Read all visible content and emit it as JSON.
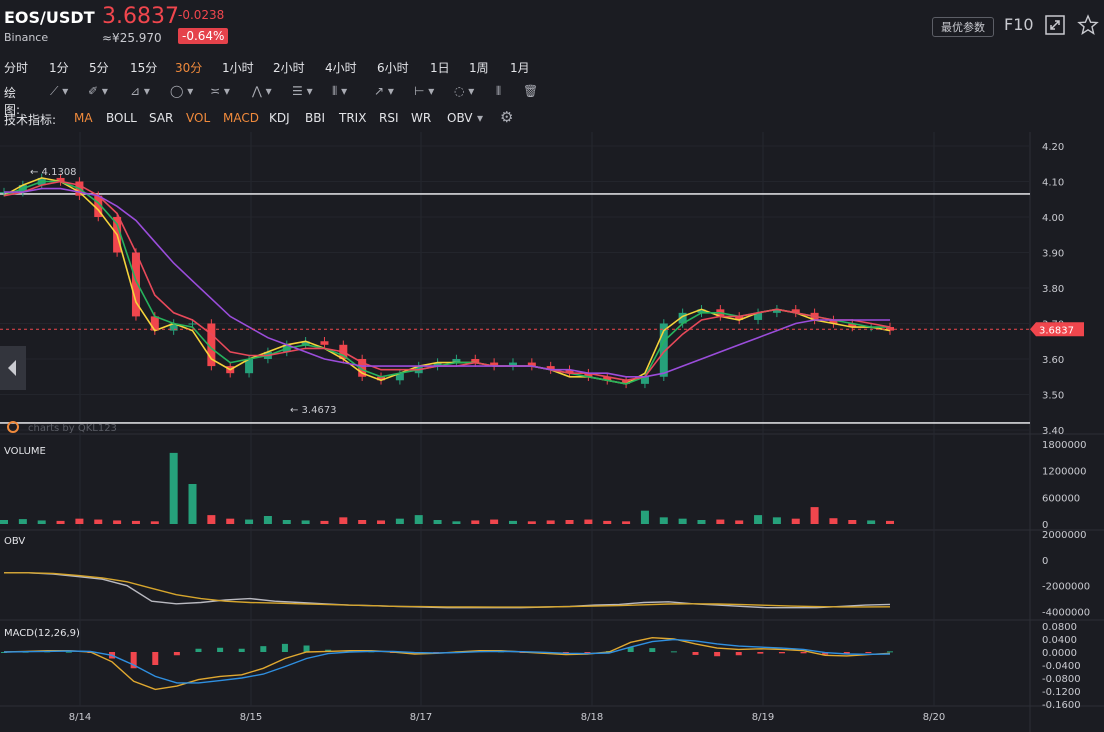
{
  "header": {
    "pair": "EOS/USDT",
    "exchange": "Binance",
    "price": "3.6837",
    "price_cny": "≈¥25.970",
    "change": "-0.0238",
    "change_pct": "-0.64%",
    "best_params_label": "最优参数",
    "f10_label": "F10",
    "expand_icon": "expand-icon",
    "star_icon": "star-icon"
  },
  "timeframes": {
    "items": [
      "分时",
      "1分",
      "5分",
      "15分",
      "30分",
      "1小时",
      "2小时",
      "4小时",
      "6小时",
      "1日",
      "1周",
      "1月"
    ],
    "active": "30分"
  },
  "drawing": {
    "label": "绘图:",
    "tools": [
      "line-tool-icon",
      "pen-tool-icon",
      "channel-tool-icon",
      "shape-tool-icon",
      "wave-tool-icon",
      "pattern-tool-icon",
      "fib-tool-icon",
      "gann-tool-icon",
      "arrow-tool-icon",
      "measure-tool-icon",
      "text-tool-icon",
      "bars-tool-icon",
      "trash-icon"
    ]
  },
  "indicators": {
    "label": "技术指标:",
    "items": [
      "MA",
      "BOLL",
      "SAR",
      "VOL",
      "MACD",
      "KDJ",
      "BBI",
      "TRIX",
      "RSI",
      "WR",
      "OBV"
    ],
    "active": [
      "MA",
      "VOL",
      "MACD"
    ],
    "settings_icon": "gear-icon"
  },
  "colors": {
    "bg": "#1b1c22",
    "up": "#26a17b",
    "down": "#f0464d",
    "ma_fast": "#f5d33b",
    "ma_mid": "#26b35d",
    "ma_slow": "#e8495a",
    "ma_long": "#9b4ddb",
    "obv_line": "#b9b9c0",
    "obv_ma": "#d6a52c",
    "macd_dif": "#e0a830",
    "macd_dea": "#2f8fe0"
  },
  "chart_data": [
    {
      "type": "candlestick",
      "panel": "price",
      "last_price": "3.6837",
      "ylim": [
        3.4,
        4.2
      ],
      "yticks": [
        "4.20",
        "4.10",
        "4.00",
        "3.90",
        "3.80",
        "3.70",
        "3.60",
        "3.50",
        "3.40"
      ],
      "xticks": [
        "8/14",
        "8/15",
        "8/17",
        "8/18",
        "8/19",
        "8/20"
      ],
      "annotations": {
        "high": "← 4.1308",
        "low": "← 3.4673",
        "watermark": "charts by QKL123"
      },
      "horizontal_lines": [
        4.065,
        3.42
      ],
      "series": [
        {
          "values": [
            4.07,
            4.09,
            4.11,
            4.1,
            4.06,
            4.0,
            3.9,
            3.72,
            3.68,
            3.7,
            3.7,
            3.58,
            3.56,
            3.6,
            3.62,
            3.64,
            3.65,
            3.64,
            3.6,
            3.55,
            3.54,
            3.56,
            3.58,
            3.59,
            3.6,
            3.59,
            3.58,
            3.59,
            3.58,
            3.57,
            3.56,
            3.55,
            3.54,
            3.53,
            3.55,
            3.7,
            3.73,
            3.74,
            3.72,
            3.71,
            3.73,
            3.74,
            3.73,
            3.71,
            3.7,
            3.69,
            3.69,
            3.68
          ]
        }
      ],
      "ma": [
        {
          "values": [
            4.06,
            4.09,
            4.11,
            4.1,
            4.07,
            4.02,
            3.95,
            3.76,
            3.68,
            3.7,
            3.68,
            3.6,
            3.57,
            3.6,
            3.62,
            3.64,
            3.65,
            3.63,
            3.6,
            3.56,
            3.54,
            3.56,
            3.58,
            3.59,
            3.59,
            3.59,
            3.58,
            3.58,
            3.58,
            3.57,
            3.55,
            3.55,
            3.54,
            3.53,
            3.56,
            3.68,
            3.72,
            3.74,
            3.72,
            3.71,
            3.73,
            3.74,
            3.73,
            3.71,
            3.7,
            3.69,
            3.69,
            3.68
          ]
        },
        {
          "values": [
            4.06,
            4.08,
            4.1,
            4.1,
            4.08,
            4.04,
            3.98,
            3.82,
            3.72,
            3.7,
            3.69,
            3.63,
            3.59,
            3.6,
            3.61,
            3.63,
            3.64,
            3.63,
            3.61,
            3.57,
            3.55,
            3.56,
            3.57,
            3.58,
            3.59,
            3.59,
            3.58,
            3.58,
            3.58,
            3.57,
            3.56,
            3.55,
            3.54,
            3.53,
            3.55,
            3.65,
            3.7,
            3.73,
            3.73,
            3.72,
            3.73,
            3.74,
            3.73,
            3.72,
            3.71,
            3.7,
            3.69,
            3.69
          ]
        },
        {
          "values": [
            4.06,
            4.07,
            4.09,
            4.1,
            4.09,
            4.06,
            4.01,
            3.9,
            3.78,
            3.73,
            3.71,
            3.67,
            3.62,
            3.61,
            3.61,
            3.62,
            3.63,
            3.63,
            3.62,
            3.59,
            3.57,
            3.57,
            3.57,
            3.58,
            3.58,
            3.59,
            3.58,
            3.58,
            3.58,
            3.57,
            3.56,
            3.56,
            3.55,
            3.54,
            3.55,
            3.62,
            3.67,
            3.71,
            3.72,
            3.72,
            3.73,
            3.74,
            3.73,
            3.72,
            3.71,
            3.71,
            3.7,
            3.69
          ]
        },
        {
          "values": [
            4.07,
            4.07,
            4.08,
            4.08,
            4.07,
            4.06,
            4.03,
            3.99,
            3.93,
            3.87,
            3.82,
            3.77,
            3.72,
            3.69,
            3.66,
            3.64,
            3.62,
            3.6,
            3.59,
            3.58,
            3.58,
            3.58,
            3.58,
            3.58,
            3.58,
            3.58,
            3.58,
            3.58,
            3.58,
            3.57,
            3.57,
            3.56,
            3.56,
            3.55,
            3.55,
            3.56,
            3.58,
            3.6,
            3.62,
            3.64,
            3.66,
            3.68,
            3.7,
            3.71,
            3.71,
            3.71,
            3.71,
            3.71
          ]
        }
      ]
    },
    {
      "type": "bar",
      "panel": "volume",
      "title": "VOLUME",
      "ylim": [
        0,
        1800000
      ],
      "yticks": [
        "1800000",
        "1200000",
        "600000",
        "0"
      ],
      "values": [
        90000,
        110000,
        80000,
        70000,
        120000,
        100000,
        80000,
        70000,
        60000,
        1600000,
        900000,
        200000,
        120000,
        100000,
        180000,
        90000,
        80000,
        70000,
        150000,
        90000,
        80000,
        120000,
        200000,
        90000,
        60000,
        80000,
        100000,
        70000,
        60000,
        80000,
        90000,
        100000,
        70000,
        60000,
        300000,
        150000,
        120000,
        90000,
        100000,
        80000,
        200000,
        150000,
        120000,
        380000,
        130000,
        90000,
        80000,
        70000
      ]
    },
    {
      "type": "line",
      "panel": "obv",
      "title": "OBV",
      "ylim": [
        -4500000,
        2000000
      ],
      "yticks": [
        "2000000",
        "0",
        "-2000000",
        "-4000000"
      ],
      "series": [
        {
          "values": [
            -1000000,
            -1000000,
            -1100000,
            -1300000,
            -1500000,
            -2000000,
            -3200000,
            -3400000,
            -3300000,
            -3100000,
            -3000000,
            -3200000,
            -3300000,
            -3400000,
            -3500000,
            -3550000,
            -3600000,
            -3650000,
            -3700000,
            -3700000,
            -3700000,
            -3700000,
            -3650000,
            -3600000,
            -3500000,
            -3450000,
            -3300000,
            -3250000,
            -3400000,
            -3500000,
            -3600000,
            -3700000,
            -3700000,
            -3700000,
            -3600000,
            -3500000,
            -3450000
          ]
        },
        {
          "values": [
            -1000000,
            -1000000,
            -1050000,
            -1200000,
            -1400000,
            -1700000,
            -2200000,
            -2700000,
            -3000000,
            -3200000,
            -3300000,
            -3350000,
            -3400000,
            -3450000,
            -3500000,
            -3550000,
            -3600000,
            -3620000,
            -3640000,
            -3650000,
            -3660000,
            -3660000,
            -3650000,
            -3620000,
            -3580000,
            -3540000,
            -3480000,
            -3420000,
            -3400000,
            -3420000,
            -3460000,
            -3520000,
            -3580000,
            -3620000,
            -3640000,
            -3640000,
            -3630000
          ]
        }
      ]
    },
    {
      "type": "bar",
      "panel": "macd",
      "title": "MACD(12,26,9)",
      "ylim": [
        -0.16,
        0.08
      ],
      "yticks": [
        "0.0800",
        "0.0400",
        "0.0000",
        "-0.0400",
        "-0.0800",
        "-0.1200",
        "-0.1600"
      ],
      "dif": [
        0.0,
        0.002,
        0.004,
        0.004,
        0.0,
        -0.03,
        -0.09,
        -0.115,
        -0.105,
        -0.085,
        -0.075,
        -0.07,
        -0.05,
        -0.02,
        0.0,
        0.002,
        0.004,
        0.004,
        0.0,
        -0.006,
        -0.004,
        0.0,
        0.004,
        0.004,
        0.0,
        -0.004,
        -0.008,
        -0.006,
        0.0,
        0.03,
        0.044,
        0.04,
        0.025,
        0.012,
        0.008,
        0.01,
        0.008,
        0.004,
        -0.01,
        -0.012,
        -0.008,
        -0.004
      ],
      "dea": [
        0.0,
        0.001,
        0.002,
        0.003,
        0.002,
        -0.01,
        -0.04,
        -0.075,
        -0.095,
        -0.095,
        -0.088,
        -0.08,
        -0.068,
        -0.045,
        -0.02,
        -0.005,
        0.0,
        0.002,
        0.002,
        -0.002,
        -0.003,
        -0.002,
        0.001,
        0.002,
        0.001,
        -0.001,
        -0.004,
        -0.005,
        -0.003,
        0.015,
        0.032,
        0.038,
        0.034,
        0.025,
        0.018,
        0.015,
        0.012,
        0.008,
        -0.002,
        -0.006,
        -0.007,
        -0.006
      ]
    }
  ]
}
